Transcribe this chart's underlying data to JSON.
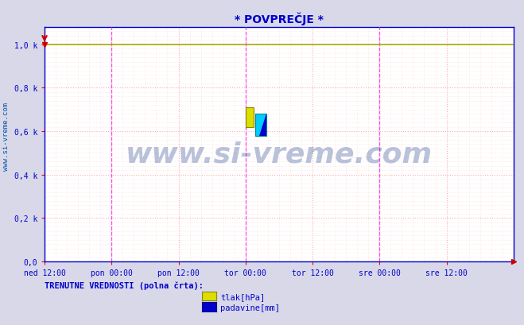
{
  "title": "* POVPREČJE *",
  "title_color": "#0000cc",
  "background_color": "#d8d8e8",
  "plot_bg_color": "#ffffff",
  "yticks": [
    0.0,
    0.2,
    0.4,
    0.6,
    0.8,
    1.0
  ],
  "ytick_labels": [
    "0,0",
    "0,2 k",
    "0,4 k",
    "0,6 k",
    "0,8 k",
    "1,0 k"
  ],
  "ylim": [
    0.0,
    1.05
  ],
  "xtick_labels": [
    "ned 12:00",
    "pon 00:00",
    "pon 12:00",
    "tor 00:00",
    "tor 12:00",
    "sre 00:00",
    "sre 12:00"
  ],
  "xtick_positions": [
    0,
    12,
    24,
    36,
    48,
    60,
    72
  ],
  "xlim": [
    0,
    84
  ],
  "grid_major_color": "#ffaaaa",
  "grid_minor_color": "#ffdddd",
  "vline_color": "#ff44ff",
  "vline_positions": [
    12,
    36,
    60
  ],
  "axis_color": "#0000cc",
  "tick_color": "#ff0000",
  "ylabel_text": "www.si-vreme.com",
  "ylabel_color": "#0055aa",
  "legend_label1": "tlak[hPa]",
  "legend_label2": "padavine[mm]",
  "legend_color1": "#dddd00",
  "legend_color2": "#0000cc",
  "legend_title": "TRENUTNE VREDNOSTI (polna črta):",
  "legend_title_color": "#0000cc",
  "watermark": "www.si-vreme.com",
  "watermark_color": "#1a3a8a",
  "tlak_line_color": "#aaaa00",
  "tlak_line_value": 1.0,
  "n_points": 337,
  "marker_color": "#cc0000",
  "icon_yellow": "#dddd00",
  "icon_cyan": "#00ccff",
  "icon_blue": "#0000cc"
}
